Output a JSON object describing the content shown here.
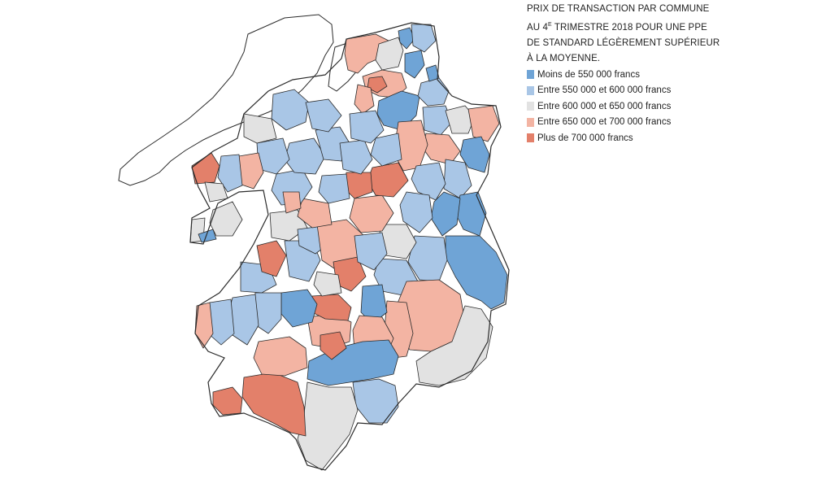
{
  "legend": {
    "title_line1": "PRIX DE TRANSACTION PAR COMMUNE",
    "title_line2_pre": "AU 4",
    "title_line2_sup": "E",
    "title_line2_post": " TRIMESTRE 2018 POUR UNE PPE",
    "title_line3": "DE STANDARD LÉGÈREMENT SUPÉRIEUR",
    "title_line4": "À LA MOYENNE.",
    "items": [
      {
        "label": "Moins de 550 000 francs",
        "color": "#6fa4d6"
      },
      {
        "label": "Entre 550 000 et 600 000 francs",
        "color": "#a9c6e6"
      },
      {
        "label": "Entre 600 000 et 650 000 francs",
        "color": "#e2e2e2"
      },
      {
        "label": "Entre 650 000 et 700 000 francs",
        "color": "#f3b4a3"
      },
      {
        "label": "Plus de 700 000 francs",
        "color": "#e3806a"
      }
    ]
  },
  "map_colors": {
    "lake": "#ffffff",
    "stroke": "#2b2b2b"
  }
}
